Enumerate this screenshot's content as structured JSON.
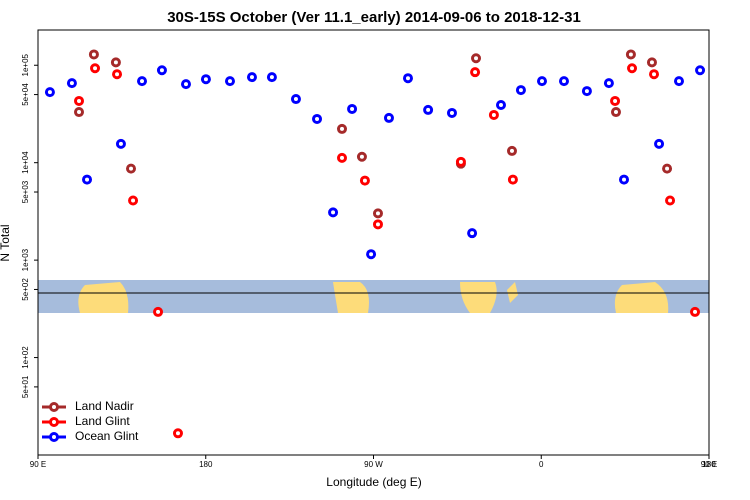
{
  "chart_data": {
    "type": "scatter",
    "title": "30S-15S October (Ver 11.1_early)   2014-09-06 to 2018-12-31",
    "x_label": "Longitude (deg E)",
    "y_label": "N Total",
    "xlim": [
      90,
      450
    ],
    "xticks": [
      {
        "value": 90,
        "label": "90 E"
      },
      180,
      {
        "value": 270,
        "label": "90 W"
      },
      {
        "value": 360,
        "label": "0"
      },
      {
        "value": 450,
        "label": "90 E"
      },
      {
        "value": 540,
        "label": "180"
      }
    ],
    "ylim": [
      10,
      230000
    ],
    "log_y": true,
    "yticks": [
      {
        "value": 100000,
        "label": "1e+05"
      },
      {
        "value": 50000,
        "label": "5e+04"
      },
      {
        "value": 10000,
        "label": "1e+04"
      },
      {
        "value": 5000,
        "label": "5e+03"
      },
      {
        "value": 1000,
        "label": "1e+03"
      },
      {
        "value": 500,
        "label": "5e+02"
      },
      {
        "value": 100,
        "label": "1e+02"
      },
      {
        "value": 50,
        "label": "5e+01"
      }
    ],
    "legend": "lower left",
    "series": [
      {
        "name": "Land Nadir",
        "color": "#a52a2a",
        "x": [
          112.0,
          120.0,
          131.8,
          139.9,
          253.1,
          263.8,
          272.4,
          316.9,
          325.0,
          344.3,
          400.1,
          408.1,
          419.4,
          427.5
        ],
        "values": [
          33100,
          129000,
          107000,
          8690,
          22200,
          11500,
          3020,
          9770,
          118000,
          13200,
          33100,
          129000,
          107000,
          8690
        ]
      },
      {
        "name": "Land Glint",
        "color": "#ff0000",
        "x": [
          112.0,
          120.6,
          132.4,
          141.0,
          154.4,
          165.1,
          253.1,
          265.4,
          272.4,
          316.9,
          324.5,
          334.6,
          344.8,
          399.6,
          408.7,
          420.5,
          429.1,
          442.5
        ],
        "values": [
          43000,
          93100,
          80900,
          4090,
          294,
          16.7,
          11200,
          6550,
          2330,
          10200,
          84900,
          30900,
          6710,
          43000,
          93100,
          80900,
          4090,
          294
        ]
      },
      {
        "name": "Ocean Glint",
        "color": "#0000ff",
        "x": [
          96.4,
          108.2,
          116.3,
          134.5,
          145.8,
          156.5,
          169.4,
          180.1,
          193.0,
          204.8,
          215.5,
          228.4,
          239.7,
          248.3,
          258.5,
          268.7,
          278.3,
          288.5,
          299.3,
          312.1,
          322.9,
          338.4,
          349.1,
          360.4,
          372.2,
          384.5,
          396.3,
          404.4,
          423.2,
          433.9,
          445.2
        ],
        "values": [
          53000,
          65500,
          6710,
          15600,
          68700,
          88900,
          64000,
          71900,
          68700,
          75500,
          75500,
          45000,
          28100,
          3090,
          35600,
          1150,
          28800,
          73600,
          34800,
          32400,
          1890,
          39100,
          55600,
          68700,
          68700,
          54300,
          65500,
          6710,
          15600,
          68700,
          88900
        ]
      }
    ]
  }
}
